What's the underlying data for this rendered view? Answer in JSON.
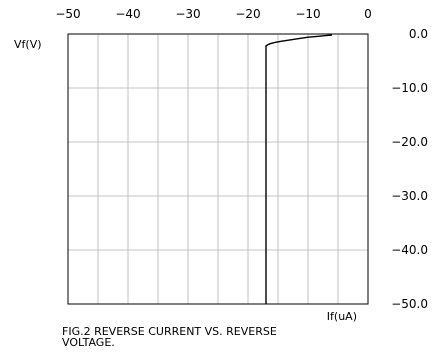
{
  "chart_data": {
    "type": "line",
    "xlabel": "If(uA)",
    "ylabel": "Vf(V)",
    "xlim": [
      -50,
      0
    ],
    "ylim": [
      -50,
      0
    ],
    "x_ticks": [
      -50,
      -40,
      -30,
      -20,
      -10,
      0
    ],
    "x_tick_labels": [
      "−50",
      "−40",
      "−30",
      "−20",
      "−10",
      "0"
    ],
    "y_ticks": [
      0,
      -10,
      -20,
      -30,
      -40,
      -50
    ],
    "y_tick_labels": [
      "0.0",
      "−10.0",
      "−20.0",
      "−30.0",
      "−40.0",
      "−50.0"
    ],
    "grid": true,
    "x_axis_position": "top",
    "y_axis_position": "right",
    "series": [
      {
        "x": [
          -17.0,
          -17.0,
          -16.7,
          -16.3,
          -15.6,
          -14.5,
          -13.0,
          -11.5,
          -10.0,
          -8.5,
          -7.0,
          -6.0
        ],
        "y": [
          -50.0,
          -2.2,
          -2.0,
          -1.8,
          -1.6,
          -1.35,
          -1.1,
          -0.85,
          -0.6,
          -0.45,
          -0.3,
          -0.2
        ]
      }
    ]
  },
  "caption": {
    "line1": "FIG.2 REVERSE CURRENT VS. REVERSE",
    "line2": "VOLTAGE."
  }
}
